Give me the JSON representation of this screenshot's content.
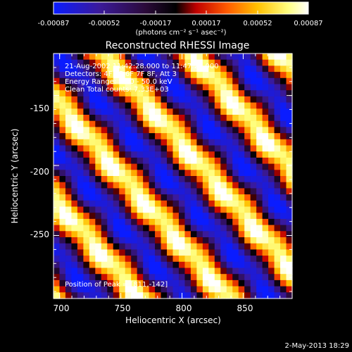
{
  "colorbar": {
    "ticks": [
      "-0.00087",
      "-0.00052",
      "-0.00017",
      "0.00017",
      "0.00052",
      "0.00087"
    ],
    "unit_label": "(photons cm⁻² s⁻¹ asec⁻²)",
    "colors": [
      "#0a1cff",
      "#3b1a9a",
      "#2b0a3a",
      "#000000",
      "#c00000",
      "#ff5a00",
      "#ffc000",
      "#ffff80",
      "#ffffff"
    ]
  },
  "chart_data": {
    "type": "heatmap",
    "title": "Reconstructed RHESSI Image",
    "xlabel": "Heliocentric X (arcsec)",
    "ylabel": "Heliocentric Y (arcsec)",
    "xlim": [
      695,
      890
    ],
    "ylim": [
      -295,
      -120
    ],
    "x_ticks": [
      700,
      750,
      800,
      850
    ],
    "y_ticks": [
      -150,
      -200,
      -250
    ],
    "peak_position": [
      811,
      -142
    ],
    "info_lines": [
      "21-Aug-2002 11:42:28.000 to 11:47:22.000",
      "Detectors: 4F 5F 6F 7F 8F, Att 3",
      "Energy Range: 25.0 - 50.0 keV",
      "Clean    Total counts: 7.33E+03"
    ],
    "peak_text": "Position of Peak = [811,-142]"
  },
  "footer": {
    "date": "2-May-2013 18:29"
  }
}
